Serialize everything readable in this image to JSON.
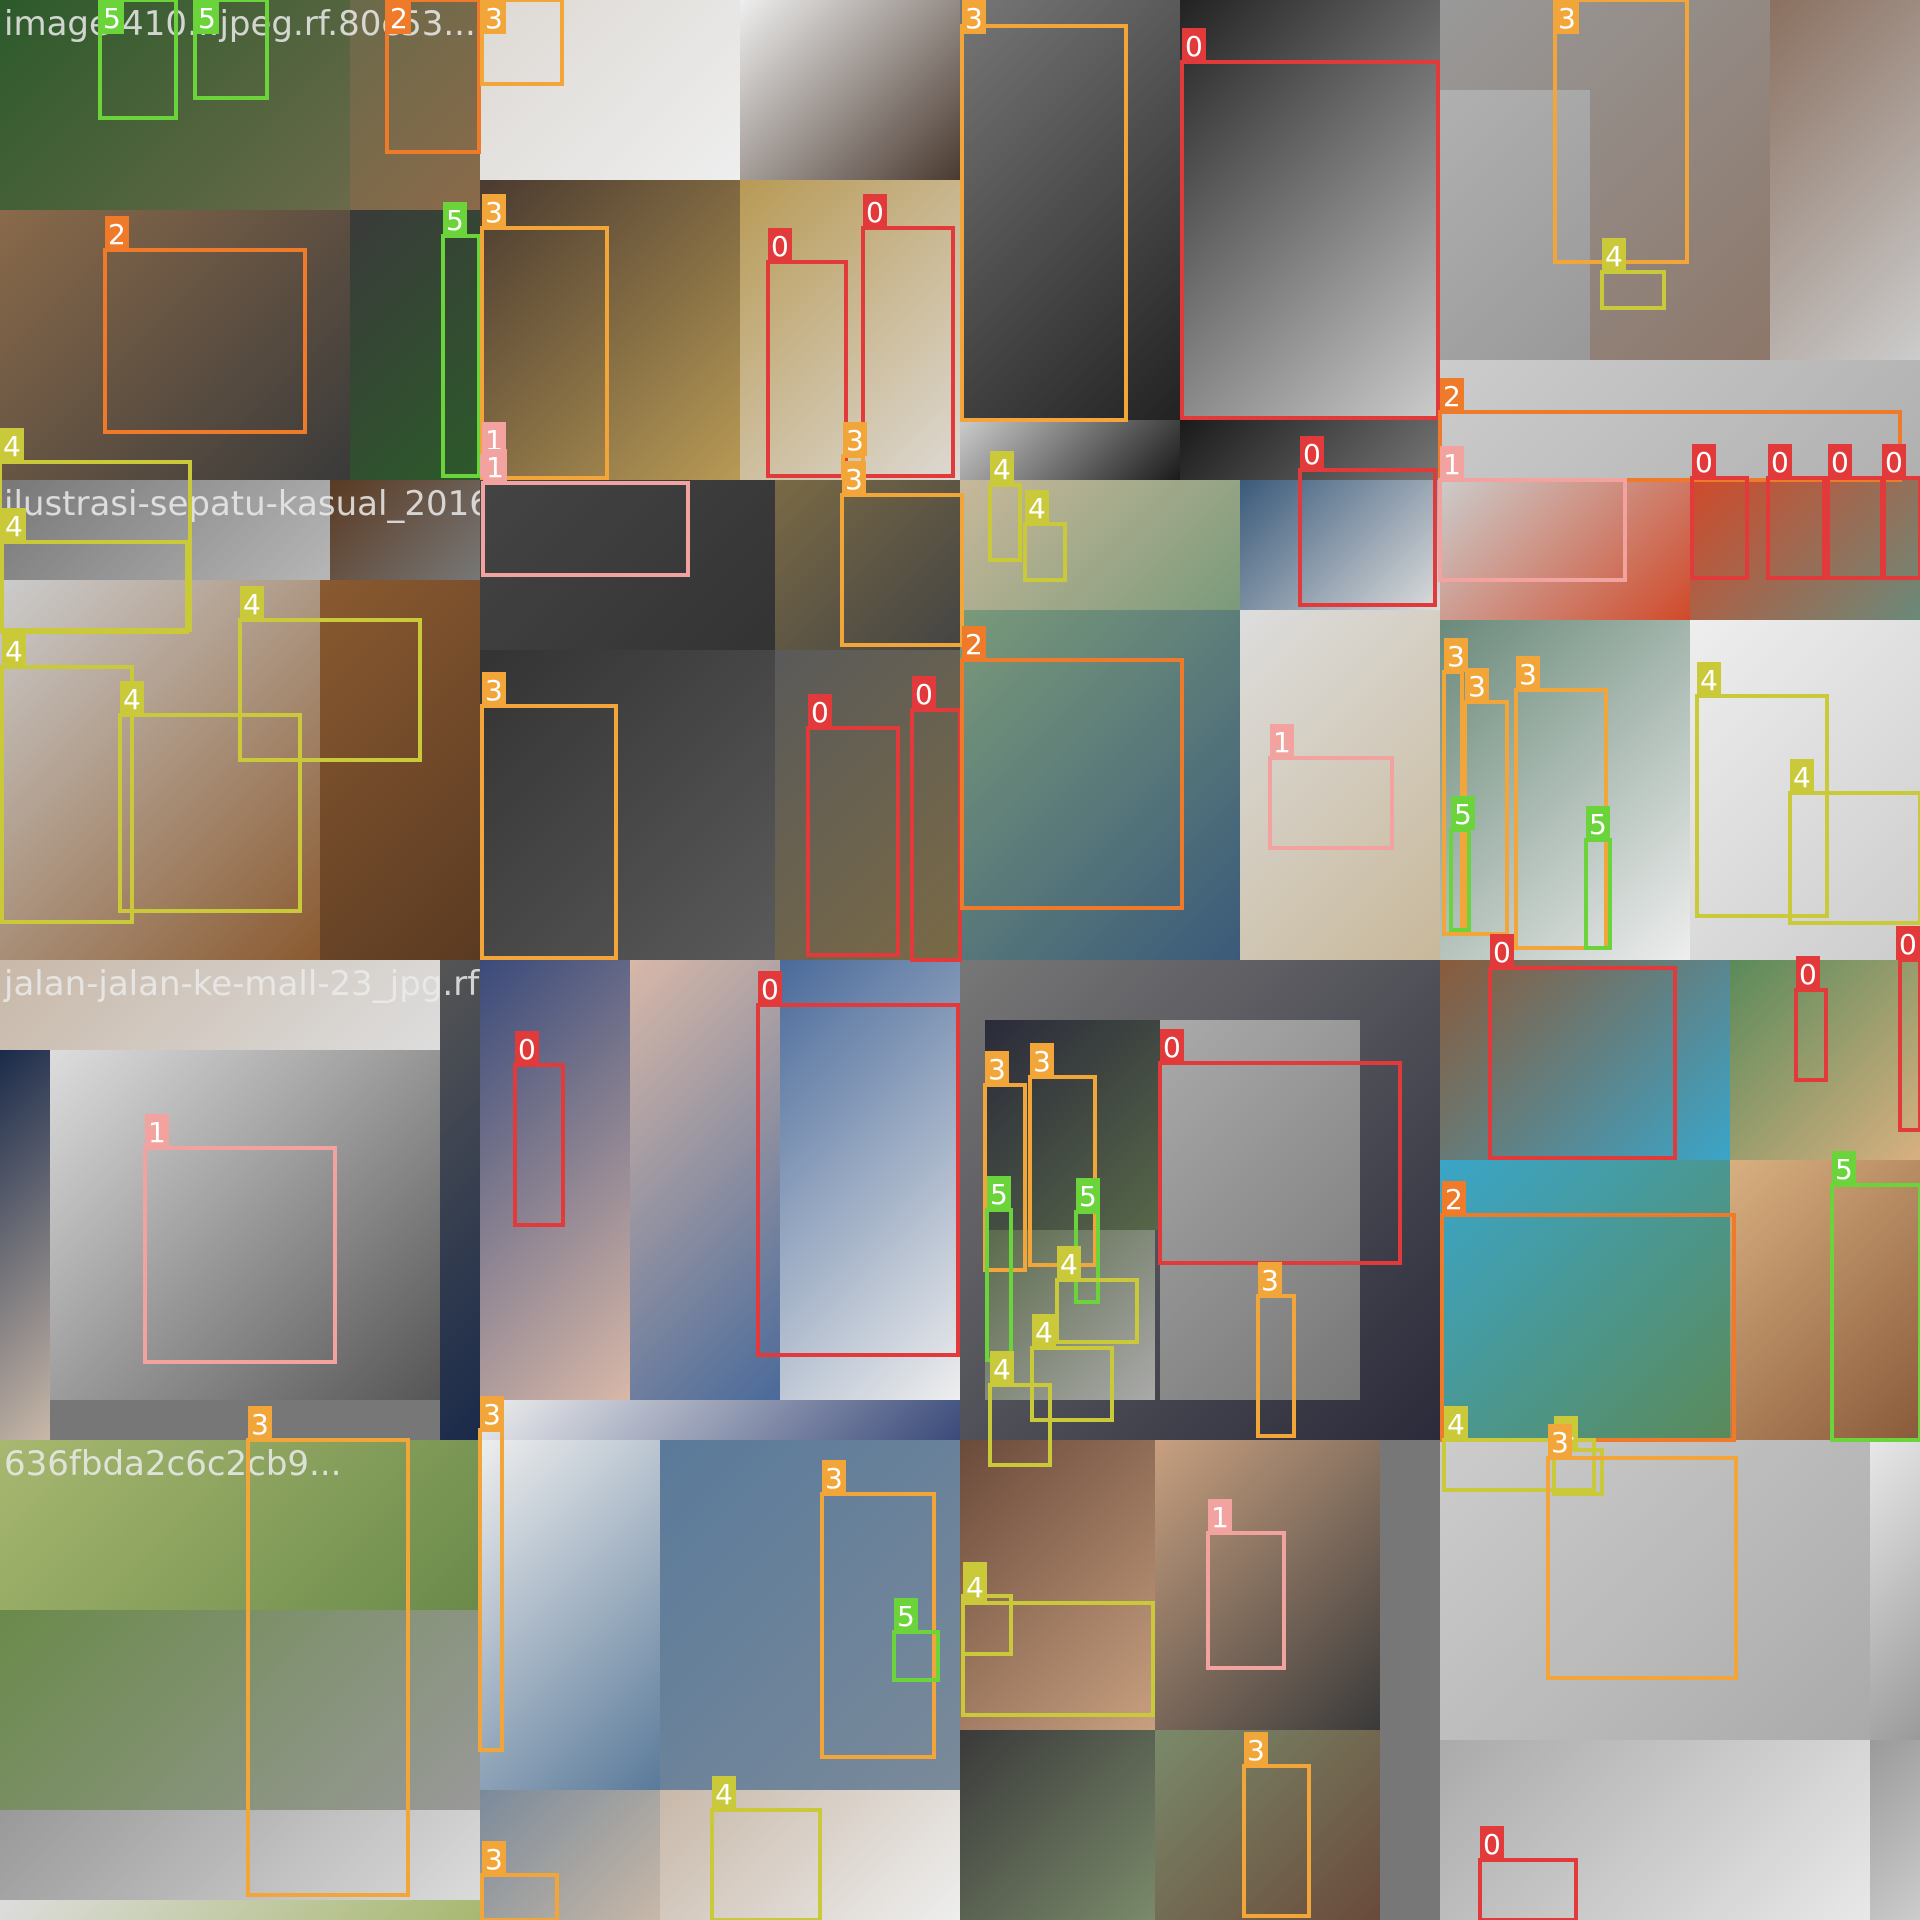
{
  "title": "",
  "tiles": [
    {
      "file": "image-410...jpeg.rf.80c53...",
      "colors": [
        "#2c5a2a",
        "#6a6a4a",
        "#8a6a4a",
        "#3a3a3a"
      ],
      "labels": []
    },
    {
      "file": "lenafoto_1688_640_jpeg...",
      "colors": [
        "#ddd9d4",
        "#eee",
        "#4a3a30",
        "#b89a55"
      ],
      "labels": []
    },
    {
      "file": "r-196134-207498o-lkl88p3vfa",
      "colors": [
        "#777",
        "#222",
        "#ccc",
        "#1a1a1a"
      ],
      "labels": []
    },
    {
      "file": "...jpeg.jpeg.rf.b9083604",
      "colors": [
        "#999",
        "#8a7060",
        "#ccc",
        "#b0b0b0"
      ],
      "labels": []
    },
    {
      "file": "ilustrasi-sepatu-kasual_2016",
      "colors": [
        "#777",
        "#ccc",
        "#8a5a30",
        "#5a3a22"
      ],
      "labels": []
    },
    {
      "file": "...jpeg.rf.a98761f07...",
      "colors": [
        "#444",
        "#333",
        "#5a5a5a",
        "#7a6a45"
      ],
      "labels": []
    },
    {
      "file": "...jpeg.rf.67a7644...",
      "colors": [
        "#c8b89a",
        "#7a9a7a",
        "#3a5a7a",
        "#ddd"
      ],
      "labels": []
    },
    {
      "file": "...c69-84ad-a",
      "colors": [
        "#ccc",
        "#d04a2a",
        "#6a8a7a",
        "#eee"
      ],
      "labels": []
    },
    {
      "file": "jalan-jalan-ke-mall-23_jpg.rf.",
      "colors": [
        "#c8b8a8",
        "#ddd",
        "#555",
        "#1a2a4a"
      ],
      "labels": []
    },
    {
      "file": "...jpeg.rf.852...",
      "colors": [
        "#3a4a7a",
        "#d8b8a8",
        "#4a6a9a",
        "#eee"
      ],
      "labels": []
    },
    {
      "file": "wanita-berjilbab_jpeg.rf.d7...",
      "colors": [
        "#777",
        "#2a2a3a",
        "#5a6a4a",
        "#aaa"
      ],
      "labels": []
    },
    {
      "file": "...out-the-best-",
      "colors": [
        "#8a5a3a",
        "#3aa5c8",
        "#5a8a5a",
        "#d8b080"
      ],
      "labels": []
    },
    {
      "file": "636fbda2c6c2cb9...",
      "colors": [
        "#a8b870",
        "#6a8a4a",
        "#999",
        "#ddd"
      ],
      "labels": []
    },
    {
      "file": "...artis-pa...",
      "colors": [
        "#eee",
        "#5a7a9a",
        "#7a8a9a",
        "#c8b8a8"
      ],
      "labels": []
    },
    {
      "file": "...jpeg.rf.c24febff...",
      "colors": [
        "#6a4a3a",
        "#c8a080",
        "#3a3a3a",
        "#7a8a6a"
      ],
      "labels": []
    },
    {
      "file": "...jpg.rf.9b3fee7",
      "colors": [
        "#ccc",
        "#aaa",
        "#e8e8e8",
        "#9a9a9a"
      ],
      "labels": []
    }
  ],
  "visible_file_names": [
    "image-410...jpeg.rf.80c53...",
    "ilustrasi-sepatu-kasual_2016",
    "jalan-jalan-ke-mall-23_jpg.rf.",
    "636fbda2c6c2cb9..."
  ],
  "class_colors": {
    "0": "#e23a3a",
    "1": "#f2a3a0",
    "2": "#ef7b2a",
    "3": "#f2a63a",
    "4": "#c9c93a",
    "5": "#6ad43a"
  },
  "detections": [
    {
      "cls": "5",
      "text": "5"
    },
    {
      "cls": "5",
      "text": "5"
    },
    {
      "cls": "2",
      "text": "2"
    },
    {
      "cls": "2",
      "text": "2"
    },
    {
      "cls": "5",
      "text": "5"
    },
    {
      "cls": "4",
      "text": "4"
    },
    {
      "cls": "3",
      "text": "3"
    },
    {
      "cls": "3",
      "text": "3"
    },
    {
      "cls": "0",
      "text": "0"
    },
    {
      "cls": "0",
      "text": "0"
    },
    {
      "cls": "1",
      "text": "1"
    },
    {
      "cls": "3",
      "text": "3"
    },
    {
      "cls": "3",
      "text": "3"
    },
    {
      "cls": "0",
      "text": "0"
    },
    {
      "cls": "3",
      "text": "3"
    },
    {
      "cls": "4",
      "text": "4"
    },
    {
      "cls": "2",
      "text": "2"
    },
    {
      "cls": "4",
      "text": "4"
    },
    {
      "cls": "4",
      "text": "4"
    },
    {
      "cls": "4",
      "text": "4"
    },
    {
      "cls": "4",
      "text": "4"
    },
    {
      "cls": "1",
      "text": "1"
    },
    {
      "cls": "3",
      "text": "3"
    },
    {
      "cls": "0",
      "text": "0"
    },
    {
      "cls": "0",
      "text": "0"
    },
    {
      "cls": "3",
      "text": "3"
    },
    {
      "cls": "4",
      "text": "4"
    },
    {
      "cls": "4",
      "text": "4"
    },
    {
      "cls": "0",
      "text": "0"
    },
    {
      "cls": "2",
      "text": "2"
    },
    {
      "cls": "1",
      "text": "1"
    },
    {
      "cls": "1",
      "text": "1"
    },
    {
      "cls": "0",
      "text": "0"
    },
    {
      "cls": "0",
      "text": "0"
    },
    {
      "cls": "0",
      "text": "0"
    },
    {
      "cls": "0",
      "text": "0"
    },
    {
      "cls": "3",
      "text": "3"
    },
    {
      "cls": "3",
      "text": "3"
    },
    {
      "cls": "3",
      "text": "3"
    },
    {
      "cls": "5",
      "text": "5"
    },
    {
      "cls": "5",
      "text": "5"
    },
    {
      "cls": "4",
      "text": "4"
    },
    {
      "cls": "4",
      "text": "4"
    },
    {
      "cls": "1",
      "text": "1"
    },
    {
      "cls": "0",
      "text": "0"
    },
    {
      "cls": "0",
      "text": "0"
    },
    {
      "cls": "3",
      "text": "3"
    },
    {
      "cls": "3",
      "text": "3"
    },
    {
      "cls": "5",
      "text": "5"
    },
    {
      "cls": "5",
      "text": "5"
    },
    {
      "cls": "0",
      "text": "0"
    },
    {
      "cls": "4",
      "text": "4"
    },
    {
      "cls": "4",
      "text": "4"
    },
    {
      "cls": "4",
      "text": "4"
    },
    {
      "cls": "3",
      "text": "3"
    },
    {
      "cls": "0",
      "text": "0"
    },
    {
      "cls": "0",
      "text": "0"
    },
    {
      "cls": "0",
      "text": "0"
    },
    {
      "cls": "2",
      "text": "2"
    },
    {
      "cls": "5",
      "text": "5"
    },
    {
      "cls": "4",
      "text": "4"
    },
    {
      "cls": "4",
      "text": "4"
    },
    {
      "cls": "3",
      "text": "3"
    },
    {
      "cls": "3",
      "text": "3"
    },
    {
      "cls": "3",
      "text": "3"
    },
    {
      "cls": "5",
      "text": "5"
    },
    {
      "cls": "3",
      "text": "3"
    },
    {
      "cls": "4",
      "text": "4"
    },
    {
      "cls": "4",
      "text": "4"
    },
    {
      "cls": "4",
      "text": "4"
    },
    {
      "cls": "1",
      "text": "1"
    },
    {
      "cls": "3",
      "text": "3"
    },
    {
      "cls": "3",
      "text": "3"
    },
    {
      "cls": "0",
      "text": "0"
    }
  ]
}
